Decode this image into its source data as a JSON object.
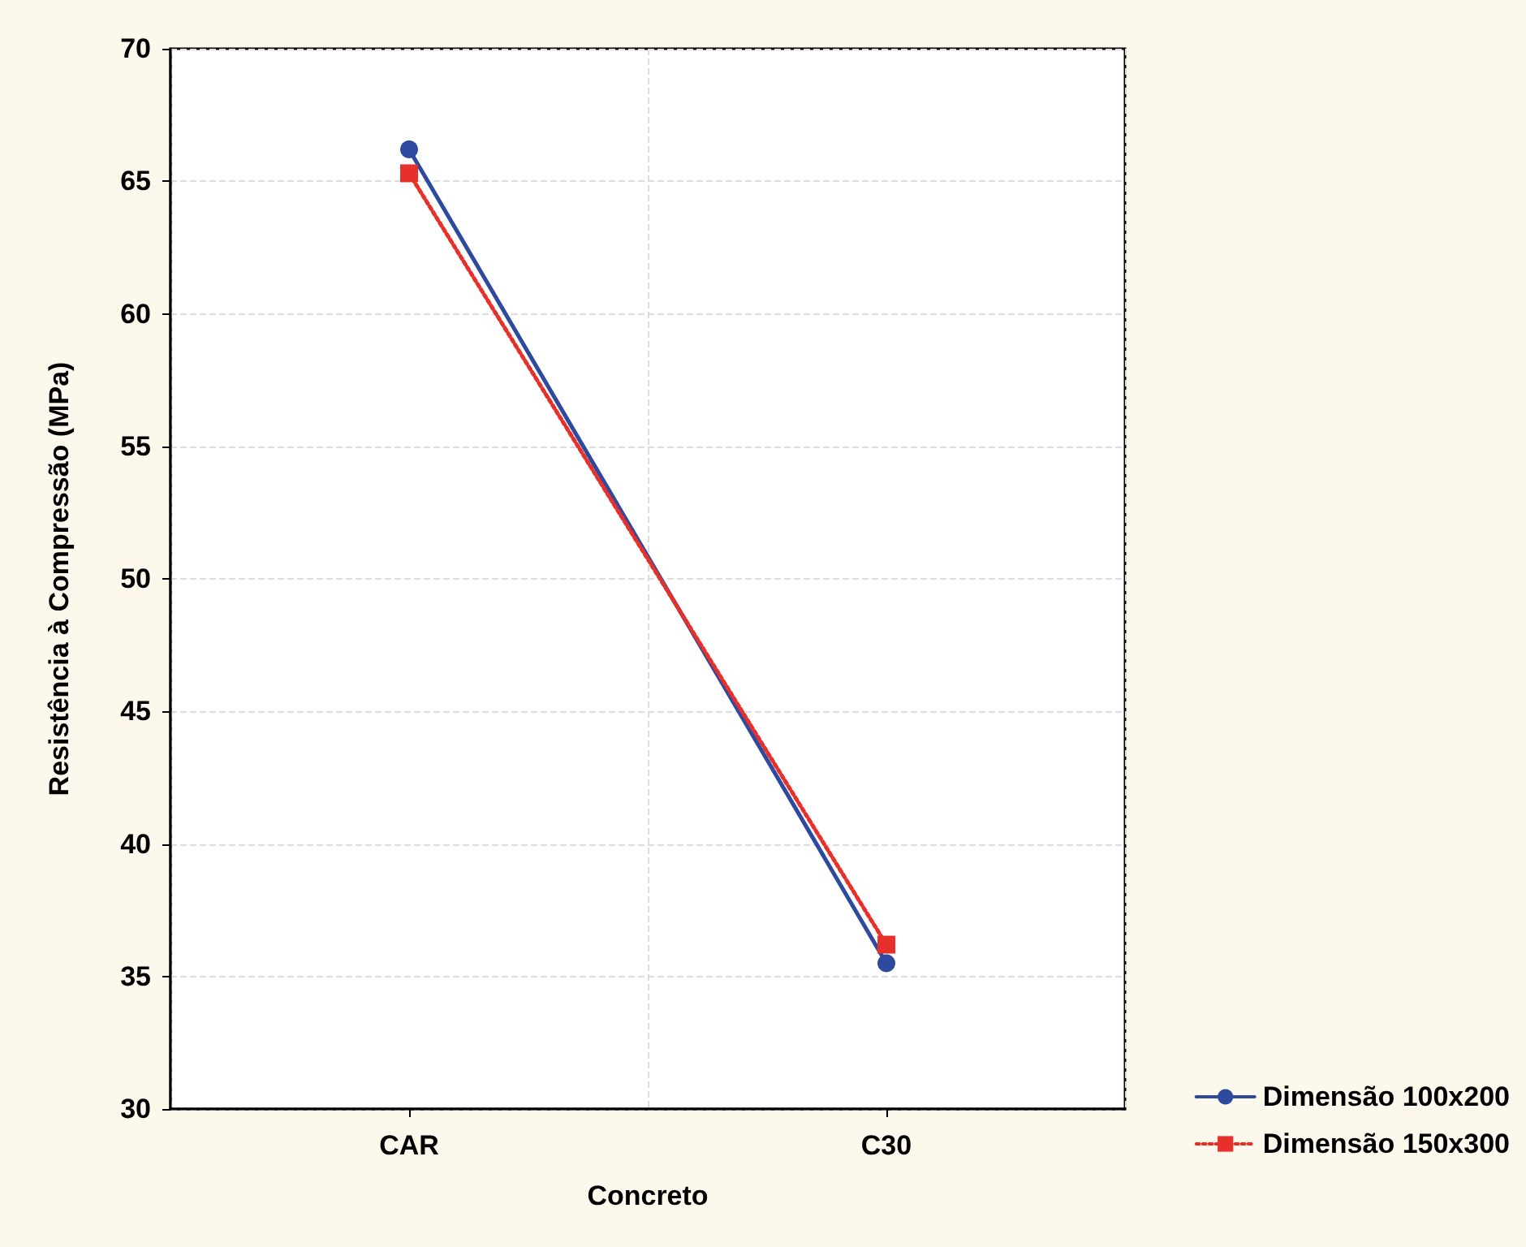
{
  "chart_data": {
    "type": "line",
    "xlabel": "Concreto",
    "ylabel": "Resistência à Compressão (MPa)",
    "categories": [
      "CAR",
      "C30"
    ],
    "series": [
      {
        "name": "Dimensão 100x200",
        "color": "#2e4a9e",
        "values": [
          66.2,
          35.5
        ],
        "marker": "circle",
        "line_style": "solid"
      },
      {
        "name": "Dimensão 150x300",
        "color": "#e8302a",
        "values": [
          65.3,
          36.2
        ],
        "marker": "square",
        "line_style": "dotted"
      }
    ],
    "ylim": [
      30,
      70
    ],
    "yticks": [
      30,
      35,
      40,
      45,
      50,
      55,
      60,
      65,
      70
    ],
    "grid": true,
    "legend": "bottom right"
  }
}
